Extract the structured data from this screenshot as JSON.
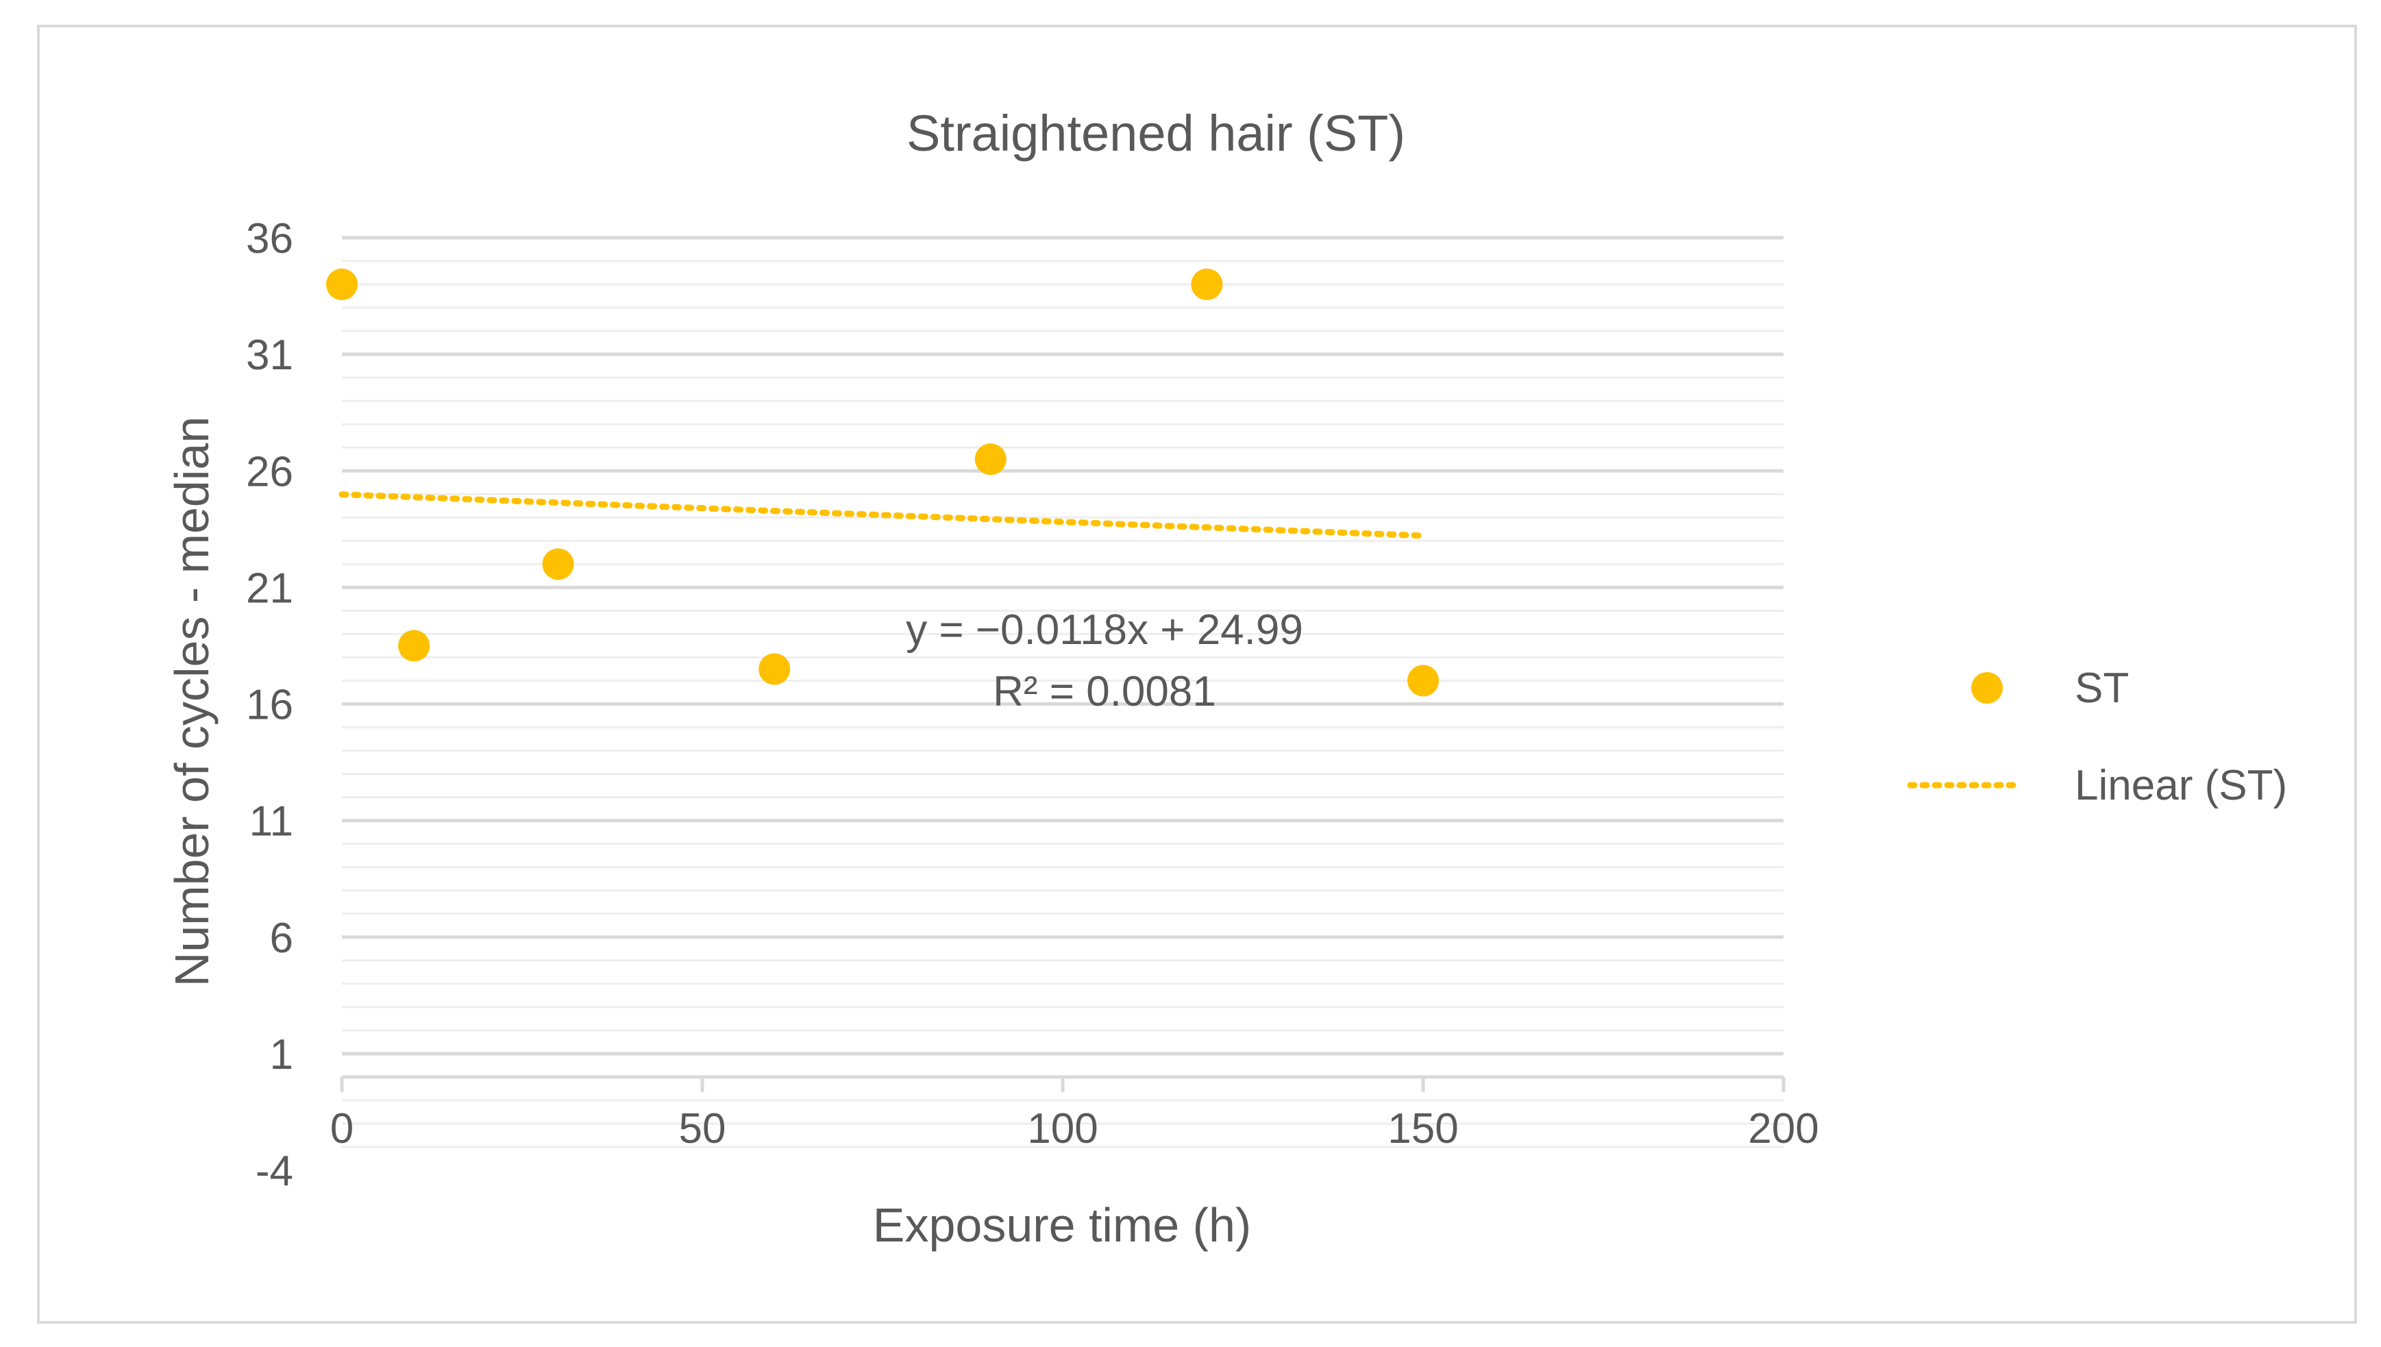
{
  "chart_data": {
    "type": "scatter",
    "title": "Straightened hair (ST)",
    "xlabel": "Exposure time (h)",
    "ylabel": "Number of cycles - median",
    "xlim": [
      0,
      200
    ],
    "ylim": [
      -4,
      36
    ],
    "x_ticks": [
      "0",
      "50",
      "100",
      "150",
      "200"
    ],
    "y_ticks": [
      "-4",
      "1",
      "6",
      "11",
      "16",
      "21",
      "26",
      "31",
      "36"
    ],
    "grid": true,
    "legend_position": "right",
    "series": [
      {
        "name": "ST",
        "color": "#FFC000",
        "points": [
          {
            "x": 0,
            "y": 34
          },
          {
            "x": 10,
            "y": 18.5
          },
          {
            "x": 30,
            "y": 22
          },
          {
            "x": 60,
            "y": 17.5
          },
          {
            "x": 90,
            "y": 26.5
          },
          {
            "x": 120,
            "y": 34
          },
          {
            "x": 150,
            "y": 17
          }
        ]
      }
    ],
    "trendline": {
      "name": "Linear (ST)",
      "type": "linear",
      "slope": -0.0118,
      "intercept": 24.99,
      "x_range": [
        0,
        150
      ],
      "color": "#FFC000",
      "style": "dotted",
      "equation_label": "y = −0.0118x + 24.99",
      "r2_label": "R² = 0.0081"
    }
  }
}
